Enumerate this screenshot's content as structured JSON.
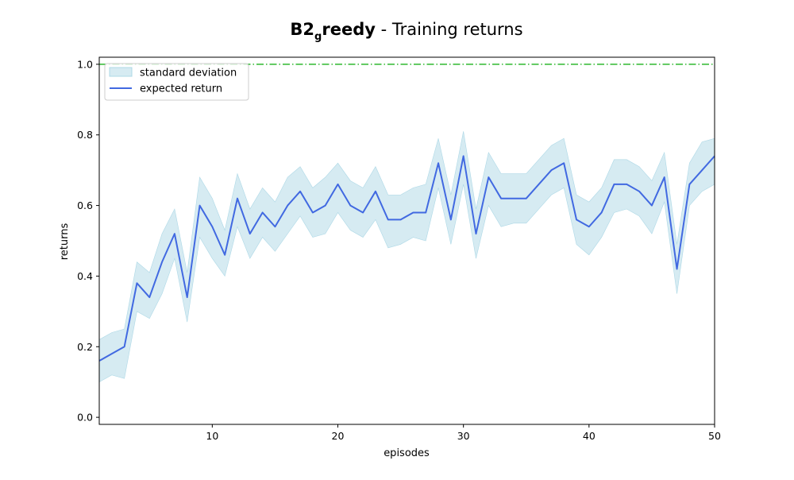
{
  "chart_data": {
    "type": "line",
    "title": {
      "bold_main": "B2",
      "bold_subscript": "g",
      "bold_tail": "reedy",
      "rest": " - Training returns"
    },
    "xlabel": "episodes",
    "ylabel": "returns",
    "xlim": [
      1,
      50
    ],
    "ylim": [
      -0.02,
      1.02
    ],
    "x_ticks": [
      10,
      20,
      30,
      40,
      50
    ],
    "y_ticks": [
      0.0,
      0.2,
      0.4,
      0.6,
      0.8,
      1.0
    ],
    "x_tick_labels": [
      "10",
      "20",
      "30",
      "40",
      "50"
    ],
    "y_tick_labels": [
      "0.0",
      "0.2",
      "0.4",
      "0.6",
      "0.8",
      "1.0"
    ],
    "grid": false,
    "legend_position": "top-left",
    "reference_line": {
      "y": 1.0,
      "style": "dash-dot",
      "color": "#2eb82e"
    },
    "x": [
      1,
      2,
      3,
      4,
      5,
      6,
      7,
      8,
      9,
      10,
      11,
      12,
      13,
      14,
      15,
      16,
      17,
      18,
      19,
      20,
      21,
      22,
      23,
      24,
      25,
      26,
      27,
      28,
      29,
      30,
      31,
      32,
      33,
      34,
      35,
      36,
      37,
      38,
      39,
      40,
      41,
      42,
      43,
      44,
      45,
      46,
      47,
      48,
      49,
      50
    ],
    "series": [
      {
        "name": "expected return",
        "color": "#4169e1",
        "values": [
          0.16,
          0.18,
          0.2,
          0.38,
          0.34,
          0.44,
          0.52,
          0.34,
          0.6,
          0.54,
          0.46,
          0.62,
          0.52,
          0.58,
          0.54,
          0.6,
          0.64,
          0.58,
          0.6,
          0.66,
          0.6,
          0.58,
          0.64,
          0.56,
          0.56,
          0.58,
          0.58,
          0.72,
          0.56,
          0.74,
          0.52,
          0.68,
          0.62,
          0.62,
          0.62,
          0.66,
          0.7,
          0.72,
          0.56,
          0.54,
          0.58,
          0.66,
          0.66,
          0.64,
          0.6,
          0.68,
          0.42,
          0.66,
          0.7,
          0.74
        ]
      },
      {
        "name": "standard deviation",
        "color": "#add8e6",
        "type": "band",
        "lower": [
          0.1,
          0.12,
          0.11,
          0.3,
          0.28,
          0.35,
          0.45,
          0.27,
          0.51,
          0.45,
          0.4,
          0.54,
          0.45,
          0.51,
          0.47,
          0.52,
          0.57,
          0.51,
          0.52,
          0.58,
          0.53,
          0.51,
          0.56,
          0.48,
          0.49,
          0.51,
          0.5,
          0.65,
          0.49,
          0.66,
          0.45,
          0.6,
          0.54,
          0.55,
          0.55,
          0.59,
          0.63,
          0.65,
          0.49,
          0.46,
          0.51,
          0.58,
          0.59,
          0.57,
          0.52,
          0.61,
          0.35,
          0.6,
          0.64,
          0.66
        ],
        "upper": [
          0.22,
          0.24,
          0.25,
          0.44,
          0.41,
          0.52,
          0.59,
          0.41,
          0.68,
          0.62,
          0.53,
          0.69,
          0.59,
          0.65,
          0.61,
          0.68,
          0.71,
          0.65,
          0.68,
          0.72,
          0.67,
          0.65,
          0.71,
          0.63,
          0.63,
          0.65,
          0.66,
          0.79,
          0.63,
          0.81,
          0.59,
          0.75,
          0.69,
          0.69,
          0.69,
          0.73,
          0.77,
          0.79,
          0.63,
          0.61,
          0.65,
          0.73,
          0.73,
          0.71,
          0.67,
          0.75,
          0.49,
          0.72,
          0.78,
          0.79
        ]
      }
    ]
  }
}
